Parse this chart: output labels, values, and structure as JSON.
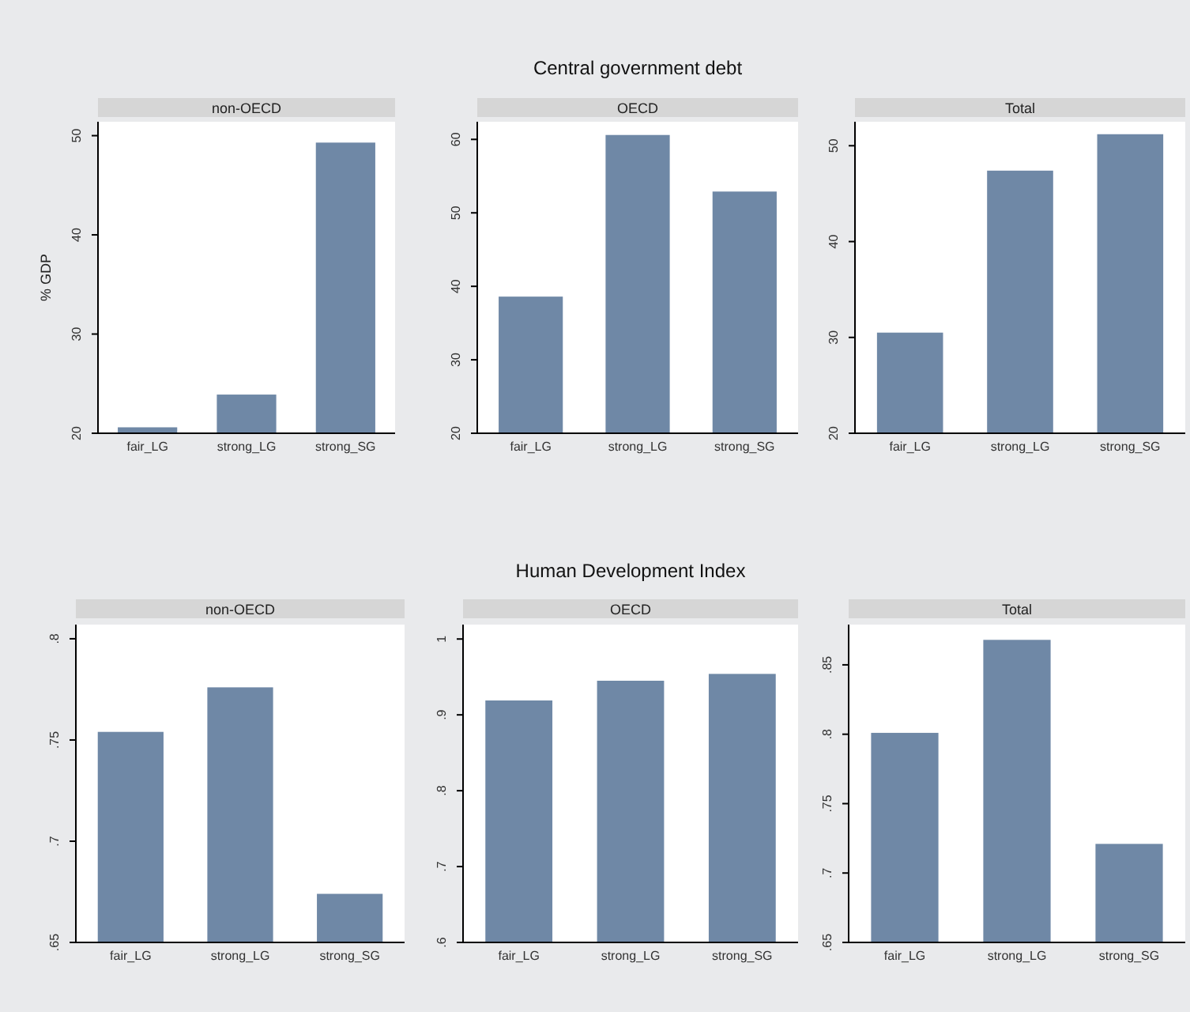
{
  "chart_data": [
    {
      "type": "bar",
      "subtitle": "non-OECD",
      "ylabel": "% GDP",
      "categories": [
        "fair_LG",
        "strong_LG",
        "strong_SG"
      ],
      "values": [
        20.6,
        23.9,
        49.3
      ],
      "color": "#6f88a6",
      "ylim": [
        20,
        51.4
      ],
      "yticks": [
        20,
        30,
        40,
        50
      ],
      "grid": false
    },
    {
      "type": "bar",
      "title": "Central government debt",
      "subtitle": "OECD",
      "categories": [
        "fair_LG",
        "strong_LG",
        "strong_SG"
      ],
      "values": [
        38.6,
        60.6,
        52.9
      ],
      "color": "#6f88a6",
      "ylim": [
        20,
        62.4
      ],
      "yticks": [
        20,
        30,
        40,
        50,
        60
      ],
      "grid": false
    },
    {
      "type": "bar",
      "subtitle": "Total",
      "categories": [
        "fair_LG",
        "strong_LG",
        "strong_SG"
      ],
      "values": [
        30.5,
        47.4,
        51.2
      ],
      "color": "#6f88a6",
      "ylim": [
        20,
        52.5
      ],
      "yticks": [
        20,
        30,
        40,
        50
      ],
      "grid": false
    },
    {
      "type": "bar",
      "subtitle": "non-OECD",
      "categories": [
        "fair_LG",
        "strong_LG",
        "strong_SG"
      ],
      "values": [
        0.754,
        0.776,
        0.674
      ],
      "color": "#6f88a6",
      "ylim": [
        0.65,
        0.807
      ],
      "yticks": [
        {
          "value": 0.65,
          "label": ".65"
        },
        {
          "value": 0.7,
          "label": ".7"
        },
        {
          "value": 0.75,
          "label": ".75"
        },
        {
          "value": 0.8,
          "label": ".8"
        }
      ],
      "grid": false
    },
    {
      "type": "bar",
      "title": "Human Development Index",
      "subtitle": "OECD",
      "categories": [
        "fair_LG",
        "strong_LG",
        "strong_SG"
      ],
      "values": [
        0.919,
        0.945,
        0.954
      ],
      "color": "#6f88a6",
      "ylim": [
        0.6,
        1.019
      ],
      "yticks": [
        {
          "value": 0.6,
          "label": ".6"
        },
        {
          "value": 0.7,
          "label": ".7"
        },
        {
          "value": 0.8,
          "label": ".8"
        },
        {
          "value": 0.9,
          "label": ".9"
        },
        {
          "value": 1,
          "label": "1"
        }
      ],
      "grid": false
    },
    {
      "type": "bar",
      "subtitle": "Total",
      "categories": [
        "fair_LG",
        "strong_LG",
        "strong_SG"
      ],
      "values": [
        0.801,
        0.868,
        0.721
      ],
      "color": "#6f88a6",
      "ylim": [
        0.65,
        0.879
      ],
      "yticks": [
        {
          "value": 0.65,
          "label": ".65"
        },
        {
          "value": 0.7,
          "label": ".7"
        },
        {
          "value": 0.75,
          "label": ".75"
        },
        {
          "value": 0.8,
          "label": ".8"
        },
        {
          "value": 0.85,
          "label": ".85"
        }
      ],
      "grid": false
    }
  ]
}
